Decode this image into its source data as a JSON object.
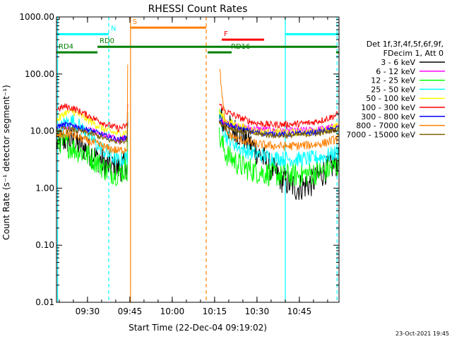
{
  "chart_data": {
    "type": "line",
    "title": "RHESSI Count Rates",
    "xlabel": "Start Time (22-Dec-04 09:19:02)",
    "ylabel": "Count Rate (s⁻¹ detector segment⁻¹)",
    "yscale": "log",
    "ylim": [
      0.01,
      1000
    ],
    "xlim_minutes": [
      0,
      100
    ],
    "x_tick_labels": [
      "09:30",
      "09:45",
      "10:00",
      "10:15",
      "10:30",
      "10:45"
    ],
    "x_tick_minutes": [
      10.97,
      25.97,
      40.97,
      55.97,
      70.97,
      85.97
    ],
    "y_tick_labels": [
      "1000.00",
      "100.00",
      "10.00",
      "1.00",
      "0.10",
      "0.01"
    ],
    "y_tick_values": [
      1000,
      100,
      10,
      1,
      0.1,
      0.01
    ],
    "gaps_minutes": [
      [
        25.2,
        57.5
      ]
    ],
    "legend_header": [
      "Det 1f,3f,4f,5f,6f,9f,",
      "FDecim 1, Att 0"
    ],
    "series": [
      {
        "name": "3 - 6 keV",
        "color": "#000000",
        "x": [
          0,
          3,
          6,
          10,
          14,
          18,
          22,
          25,
          57.5,
          60,
          65,
          70,
          75,
          80,
          85,
          90,
          95,
          100
        ],
        "values": [
          6,
          7,
          6.5,
          5,
          3.5,
          2.5,
          2.2,
          2.6,
          18,
          12,
          9,
          5,
          2.5,
          1.4,
          1,
          1.2,
          2,
          3
        ]
      },
      {
        "name": "6 - 12 keV",
        "color": "#ff00ff",
        "x": [
          0,
          3,
          6,
          10,
          14,
          18,
          22,
          25,
          57.5,
          60,
          65,
          70,
          75,
          80,
          85,
          90,
          95,
          100
        ],
        "values": [
          11,
          12.5,
          12,
          11,
          9.5,
          8,
          7,
          7.8,
          16,
          14,
          12,
          11,
          10.5,
          10,
          10.2,
          10.5,
          11,
          12.5
        ]
      },
      {
        "name": "12 - 25 keV",
        "color": "#00ff00",
        "x": [
          0,
          3,
          6,
          10,
          14,
          18,
          22,
          25,
          57.5,
          60,
          65,
          70,
          75,
          80,
          85,
          90,
          95,
          100
        ],
        "values": [
          7,
          6,
          5,
          4,
          3,
          2,
          1.8,
          2.2,
          8,
          4,
          2.5,
          2,
          1.8,
          1.7,
          1.7,
          1.8,
          2,
          2.5
        ]
      },
      {
        "name": "25 - 50 keV",
        "color": "#00ffff",
        "x": [
          0,
          3,
          6,
          10,
          14,
          18,
          22,
          25,
          57.5,
          60,
          65,
          70,
          75,
          80,
          85,
          90,
          95,
          100
        ],
        "values": [
          9,
          14,
          15,
          10,
          6,
          4,
          3,
          3.5,
          20,
          8,
          5,
          4,
          3.5,
          3.3,
          3.2,
          3.3,
          3.6,
          4.3
        ]
      },
      {
        "name": "50 - 100 keV",
        "color": "#ffff00",
        "x": [
          0,
          3,
          6,
          10,
          14,
          18,
          22,
          25,
          57.5,
          60,
          65,
          70,
          75,
          80,
          85,
          90,
          95,
          100
        ],
        "values": [
          15,
          21,
          22,
          17,
          13,
          10,
          9,
          9.5,
          22,
          15,
          12,
          10,
          9.5,
          9.3,
          9.4,
          9.6,
          10.5,
          12
        ]
      },
      {
        "name": "100 - 300 keV",
        "color": "#ff0000",
        "x": [
          0,
          3,
          6,
          10,
          14,
          18,
          22,
          25,
          57.5,
          60,
          65,
          70,
          75,
          80,
          85,
          90,
          95,
          100
        ],
        "values": [
          24,
          27,
          25,
          20,
          16,
          13,
          11,
          12.5,
          30,
          22,
          17,
          14,
          13,
          13,
          13.3,
          14,
          16,
          20
        ]
      },
      {
        "name": "300 - 800 keV",
        "color": "#0000ff",
        "x": [
          0,
          3,
          6,
          10,
          14,
          18,
          22,
          25,
          57.5,
          60,
          65,
          70,
          75,
          80,
          85,
          90,
          95,
          100
        ],
        "values": [
          12,
          13,
          12.5,
          11,
          9.5,
          8,
          7,
          7.8,
          15,
          13,
          11,
          9.5,
          9,
          8.8,
          9,
          9.3,
          10,
          11.5
        ]
      },
      {
        "name": "800 - 7000 keV",
        "color": "#ff8000",
        "x": [
          0,
          3,
          6,
          10,
          14,
          18,
          22,
          25,
          57.5,
          60,
          65,
          70,
          75,
          80,
          85,
          90,
          95,
          100
        ],
        "values": [
          8,
          9,
          8.5,
          7,
          6,
          5,
          4.5,
          5,
          160,
          9,
          7,
          6,
          5.6,
          5.4,
          5.5,
          5.7,
          6.2,
          7.5
        ]
      },
      {
        "name": "7000 - 15000 keV",
        "color": "#806000",
        "x": [
          0,
          3,
          6,
          10,
          14,
          18,
          22,
          25,
          57.5,
          60,
          65,
          70,
          75,
          80,
          85,
          90,
          95,
          100
        ],
        "values": [
          10,
          11,
          10.5,
          9.5,
          8.5,
          7,
          6.5,
          7,
          14,
          12,
          10,
          9,
          8.5,
          8.3,
          8.5,
          8.8,
          9.5,
          11
        ]
      }
    ],
    "vertical_lines": [
      {
        "x": 0.4,
        "color": "#00ffff",
        "style": "solid"
      },
      {
        "x": 18.5,
        "color": "#00ffff",
        "style": "dashed"
      },
      {
        "x": 26.2,
        "color": "#ff8000",
        "style": "solid"
      },
      {
        "x": 53.0,
        "color": "#ff8000",
        "style": "dashed"
      },
      {
        "x": 81.0,
        "color": "#00ffff",
        "style": "solid"
      },
      {
        "x": 99.3,
        "color": "#00ffff",
        "style": "dashed"
      }
    ],
    "flag_bars": [
      {
        "label": "",
        "color": "#00ffff",
        "y": 500,
        "x0": 0,
        "x1": 18.5
      },
      {
        "label": "N",
        "color": "#00ffff",
        "y": 500,
        "x0": 18.5,
        "x1": 18.5
      },
      {
        "label": "",
        "color": "#00ffff",
        "y": 500,
        "x0": 81.0,
        "x1": 100
      },
      {
        "label": "S",
        "color": "#ff8000",
        "y": 650,
        "x0": 26.2,
        "x1": 53.0
      },
      {
        "label": "F",
        "color": "#ff0000",
        "y": 400,
        "x0": 58.5,
        "x1": 73.5
      },
      {
        "label": "RD0",
        "color": "#008000",
        "y": 300,
        "x0": 14.5,
        "x1": 99.3
      },
      {
        "label": "RD4",
        "color": "#008000",
        "y": 240,
        "x0": 0,
        "x1": 14.5
      },
      {
        "label": "RD16",
        "color": "#008000",
        "y": 240,
        "x0": 61.0,
        "x1": 61.0
      },
      {
        "label": "",
        "color": "#008000",
        "y": 240,
        "x0": 53.5,
        "x1": 62.0
      },
      {
        "label": "",
        "color": "#008000",
        "y": 240,
        "x0": 99.0,
        "x1": 100
      }
    ],
    "footer_timestamp": "23-Oct-2021 19:45"
  }
}
